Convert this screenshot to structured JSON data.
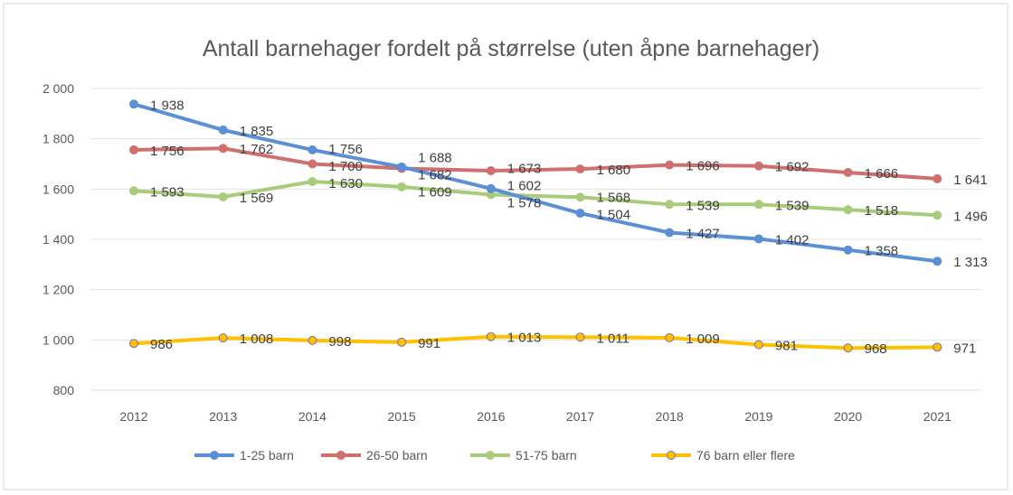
{
  "chart_data": {
    "type": "line",
    "title": "Antall barnehager fordelt på størrelse (uten åpne barnehager)",
    "xlabel": "",
    "ylabel": "",
    "categories": [
      "2012",
      "2013",
      "2014",
      "2015",
      "2016",
      "2017",
      "2018",
      "2019",
      "2020",
      "2021"
    ],
    "ylim": [
      800,
      2000
    ],
    "yticks": [
      800,
      1000,
      1200,
      1400,
      1600,
      1800,
      2000
    ],
    "ytick_labels": [
      "800",
      "1 000",
      "1 200",
      "1 400",
      "1 600",
      "1 800",
      "2 000"
    ],
    "grid": true,
    "legend": "bottom",
    "series": [
      {
        "name": "1-25 barn",
        "color": "#5b8fd6",
        "values": [
          1938,
          1835,
          1756,
          1688,
          1602,
          1504,
          1427,
          1402,
          1358,
          1313
        ]
      },
      {
        "name": "26-50 barn",
        "color": "#d0706e",
        "values": [
          1756,
          1762,
          1700,
          1682,
          1673,
          1680,
          1696,
          1692,
          1666,
          1641
        ]
      },
      {
        "name": "51-75 barn",
        "color": "#a9cc7a",
        "values": [
          1593,
          1569,
          1630,
          1609,
          1578,
          1568,
          1539,
          1539,
          1518,
          1496
        ]
      },
      {
        "name": "76 barn eller flere",
        "color": "#ffc000",
        "values": [
          986,
          1008,
          998,
          991,
          1013,
          1011,
          1009,
          981,
          968,
          971
        ]
      }
    ]
  }
}
